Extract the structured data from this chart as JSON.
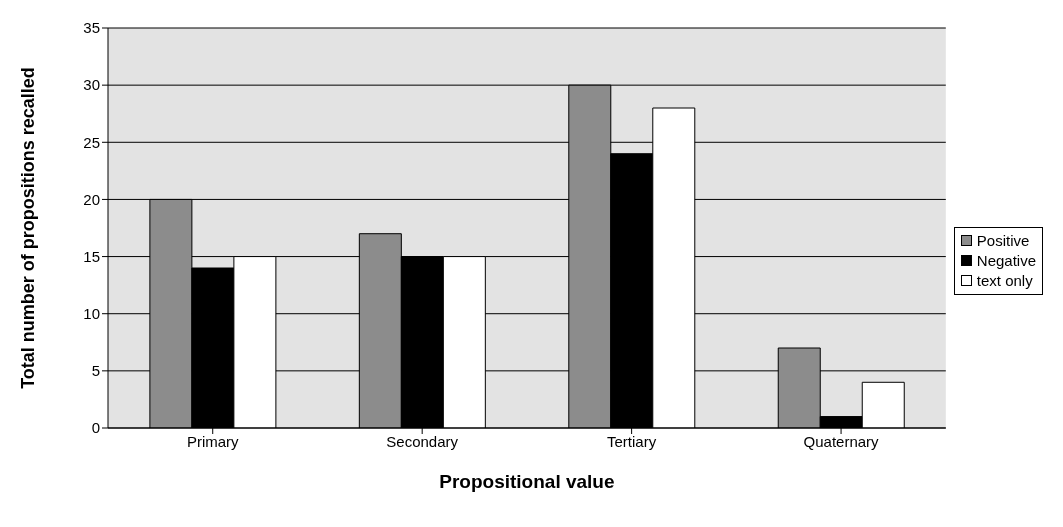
{
  "chart_data": {
    "type": "bar",
    "xlabel": "Propositional value",
    "ylabel": "Total number of propositions recalled",
    "categories": [
      "Primary",
      "Secondary",
      "Tertiary",
      "Quaternary"
    ],
    "series": [
      {
        "name": "Positive",
        "color": "#8c8c8c",
        "values": [
          20,
          17,
          30,
          7
        ]
      },
      {
        "name": "Negative",
        "color": "#000000",
        "values": [
          14,
          15,
          24,
          1
        ]
      },
      {
        "name": "text only",
        "color": "#ffffff",
        "values": [
          15,
          15,
          28,
          4
        ]
      }
    ],
    "ylim": [
      0,
      35
    ],
    "yticks": [
      0,
      5,
      10,
      15,
      20,
      25,
      30,
      35
    ],
    "grid": "y",
    "legend": "right"
  }
}
